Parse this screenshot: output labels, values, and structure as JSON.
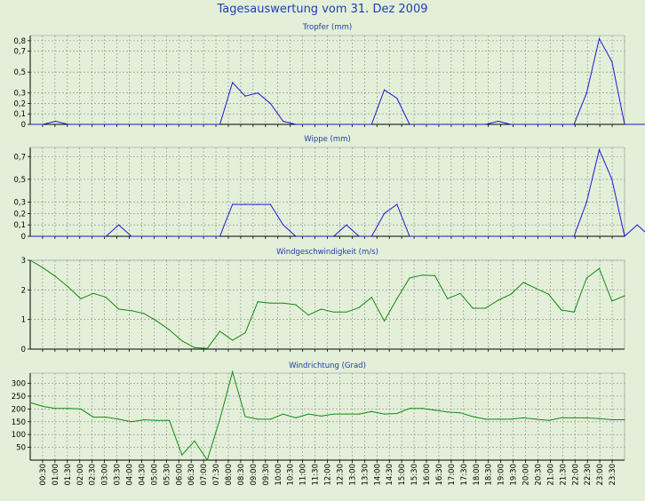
{
  "title": "Tagesauswertung vom 31. Dez 2009",
  "colors": {
    "background": "#e4efd9",
    "title": "#1f3fb0",
    "panel_title": "#1f3fa0",
    "blue_line": "#1a1ad0",
    "green_line": "#138a13",
    "grid": "#8a8a8a",
    "axis": "#000000"
  },
  "x_tick_labels": [
    "00:30",
    "01:00",
    "01:30",
    "02:00",
    "02:30",
    "03:00",
    "03:30",
    "04:00",
    "04:30",
    "05:00",
    "05:30",
    "06:00",
    "06:30",
    "07:00",
    "07:30",
    "08:00",
    "08:30",
    "09:00",
    "09:30",
    "10:00",
    "10:30",
    "11:00",
    "11:30",
    "12:00",
    "12:30",
    "13:00",
    "13:30",
    "14:00",
    "14:30",
    "15:00",
    "15:30",
    "16:00",
    "16:30",
    "17:00",
    "17:30",
    "18:00",
    "18:30",
    "19:00",
    "19:30",
    "20:00",
    "20:30",
    "21:00",
    "21:30",
    "22:00",
    "22:30",
    "23:00",
    "23:30"
  ],
  "chart_data": [
    {
      "type": "line",
      "title": "Tropfer (mm)",
      "ylim": [
        0,
        0.85
      ],
      "yticks": [
        0,
        0.1,
        0.2,
        0.3,
        0.5,
        0.7,
        0.8
      ],
      "ytick_labels": [
        "0",
        "0,1",
        "0,2",
        "0,3",
        "0,5",
        "0,7",
        "0,8"
      ],
      "color": "blue",
      "series": [
        {
          "values": [
            0,
            0,
            0.03,
            0,
            0,
            0,
            0,
            0,
            0,
            0,
            0,
            0,
            0,
            0,
            0,
            0,
            0.4,
            0.27,
            0.3,
            0.2,
            0.03,
            0,
            0,
            0,
            0,
            0,
            0,
            0,
            0.33,
            0.25,
            0,
            0,
            0,
            0,
            0,
            0,
            0,
            0.03,
            0,
            0,
            0,
            0,
            0,
            0,
            0.3,
            0.82,
            0.6,
            0,
            0,
            0
          ]
        }
      ]
    },
    {
      "type": "line",
      "title": "Wippe (mm)",
      "ylim": [
        0,
        0.78
      ],
      "yticks": [
        0,
        0.1,
        0.2,
        0.3,
        0.5,
        0.7
      ],
      "ytick_labels": [
        "0",
        "0,1",
        "0,2",
        "0,3",
        "0,5",
        "0,7"
      ],
      "color": "blue",
      "series": [
        {
          "values": [
            0,
            0,
            0,
            0,
            0,
            0,
            0,
            0.1,
            0,
            0,
            0,
            0,
            0,
            0,
            0,
            0,
            0.28,
            0.28,
            0.28,
            0.28,
            0.1,
            0,
            0,
            0,
            0,
            0.1,
            0,
            0,
            0.2,
            0.28,
            0,
            0,
            0,
            0,
            0,
            0,
            0,
            0,
            0,
            0,
            0,
            0,
            0,
            0,
            0.3,
            0.76,
            0.5,
            0,
            0.1,
            0
          ]
        }
      ]
    },
    {
      "type": "line",
      "title": "Windgeschwindigkeit (m/s)",
      "ylim": [
        0,
        3
      ],
      "yticks": [
        0,
        1,
        2,
        3
      ],
      "ytick_labels": [
        "0",
        "1",
        "2",
        "3"
      ],
      "color": "green",
      "series": [
        {
          "values": [
            3.0,
            2.75,
            2.45,
            2.1,
            1.7,
            1.88,
            1.75,
            1.35,
            1.3,
            1.2,
            0.95,
            0.65,
            0.28,
            0.05,
            0.02,
            0.6,
            0.3,
            0.55,
            1.6,
            1.55,
            1.55,
            1.5,
            1.15,
            1.35,
            1.25,
            1.25,
            1.4,
            1.75,
            0.95,
            1.7,
            2.4,
            2.5,
            2.48,
            1.7,
            1.88,
            1.38,
            1.38,
            1.65,
            1.85,
            2.25,
            2.05,
            1.85,
            1.32,
            1.25,
            2.4,
            2.72,
            1.62,
            1.8
          ]
        }
      ]
    },
    {
      "type": "line",
      "title": "Windrichtung (Grad)",
      "ylim": [
        0,
        340
      ],
      "yticks": [
        50,
        100,
        150,
        200,
        250,
        300
      ],
      "ytick_labels": [
        "50",
        "100",
        "150",
        "200",
        "250",
        "300"
      ],
      "color": "green",
      "series": [
        {
          "values": [
            225,
            210,
            202,
            202,
            200,
            168,
            168,
            160,
            150,
            158,
            155,
            155,
            20,
            75,
            0,
            160,
            345,
            170,
            160,
            160,
            180,
            165,
            180,
            172,
            180,
            180,
            180,
            190,
            180,
            182,
            202,
            202,
            195,
            188,
            185,
            170,
            160,
            160,
            160,
            165,
            160,
            155,
            165,
            165,
            165,
            162,
            158,
            158
          ]
        }
      ]
    }
  ]
}
